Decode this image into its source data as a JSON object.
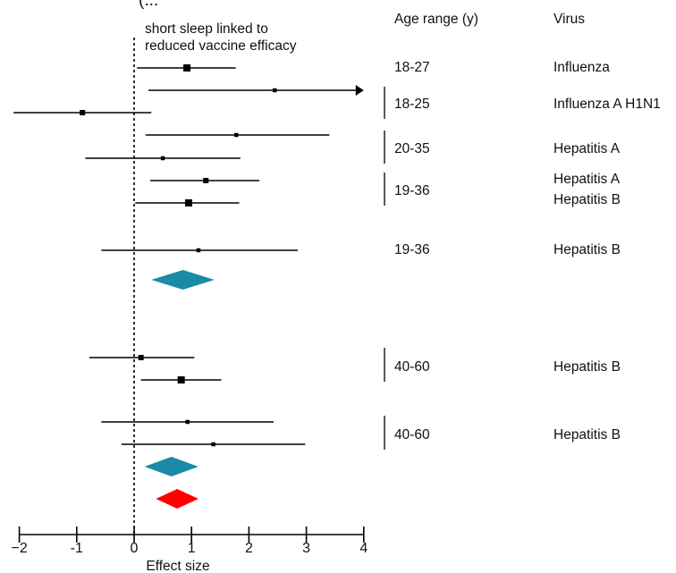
{
  "chart_data": {
    "type": "forest",
    "title": "(...",
    "annotation": [
      "short sleep linked to",
      "reduced vaccine efficacy"
    ],
    "xlabel": "Effect size",
    "xlim": [
      -2,
      4
    ],
    "xticks": [
      "−2",
      "-1",
      "0",
      "1",
      "2",
      "3",
      "4"
    ],
    "reference_line": 0,
    "columns": {
      "age": "Age range (y)",
      "virus": "Virus"
    },
    "colors": {
      "subtotal": "#1a8aa6",
      "overall": "#ff0000",
      "line": "#000000"
    },
    "studies": [
      {
        "est": 0.92,
        "lo": 0.05,
        "hi": 1.77,
        "marker": "large"
      },
      {
        "est": 2.45,
        "lo": 0.25,
        "hi": 4.0,
        "arrow": "right",
        "marker": "small"
      },
      {
        "est": -0.9,
        "lo": -2.1,
        "hi": 0.3,
        "marker": "medium"
      },
      {
        "est": 1.78,
        "lo": 0.2,
        "hi": 3.4,
        "marker": "small"
      },
      {
        "est": 0.5,
        "lo": -0.85,
        "hi": 1.85,
        "marker": "small"
      },
      {
        "est": 1.25,
        "lo": 0.28,
        "hi": 2.18,
        "marker": "medium"
      },
      {
        "est": 0.95,
        "lo": 0.02,
        "hi": 1.83,
        "marker": "large"
      },
      {
        "est": 1.12,
        "lo": -0.57,
        "hi": 2.85,
        "marker": "small"
      },
      {
        "est": 0.12,
        "lo": -0.78,
        "hi": 1.05,
        "marker": "medium"
      },
      {
        "est": 0.82,
        "lo": 0.12,
        "hi": 1.52,
        "marker": "large"
      },
      {
        "est": 0.93,
        "lo": -0.57,
        "hi": 2.43,
        "marker": "small"
      },
      {
        "est": 1.38,
        "lo": -0.22,
        "hi": 2.98,
        "marker": "small"
      }
    ],
    "subgroups": [
      {
        "est": 0.85,
        "lo": 0.3,
        "hi": 1.4,
        "color": "subtotal"
      },
      {
        "est": 0.65,
        "lo": 0.18,
        "hi": 1.12,
        "color": "subtotal"
      }
    ],
    "overall": {
      "est": 0.75,
      "lo": 0.38,
      "hi": 1.12,
      "color": "overall"
    },
    "groups": [
      {
        "age": "18-27",
        "viruses": [
          "Influenza"
        ],
        "bracket": false
      },
      {
        "age": "18-25",
        "viruses": [
          "Influenza A H1N1"
        ],
        "bracket": true
      },
      {
        "age": "20-35",
        "viruses": [
          "Hepatitis A"
        ],
        "bracket": true
      },
      {
        "age": "19-36",
        "viruses": [
          "Hepatitis A",
          "Hepatitis B"
        ],
        "bracket": true
      },
      {
        "age": "19-36",
        "viruses": [
          "Hepatitis B"
        ],
        "bracket": false
      },
      {
        "age": "40-60",
        "viruses": [
          "Hepatitis B"
        ],
        "bracket": true
      },
      {
        "age": "40-60",
        "viruses": [
          "Hepatitis B"
        ],
        "bracket": true
      }
    ]
  }
}
